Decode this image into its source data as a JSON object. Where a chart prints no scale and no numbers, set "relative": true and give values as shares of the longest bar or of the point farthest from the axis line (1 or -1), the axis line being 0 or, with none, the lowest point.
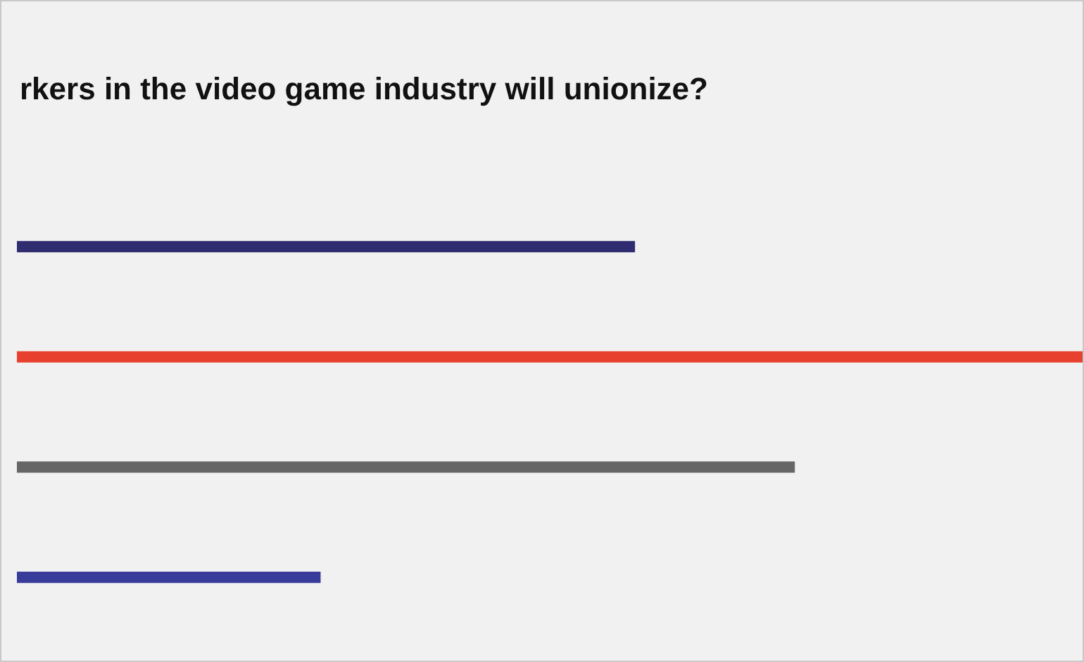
{
  "chart_data": {
    "type": "bar",
    "orientation": "horizontal",
    "relative": true,
    "title": "rkers in the video game industry will unionize?",
    "categories": [
      null,
      null,
      null,
      null
    ],
    "values": [
      0.58,
      1,
      0.73,
      0.285
    ],
    "colors": [
      "#2f2d6f",
      "#e8402e",
      "#666666",
      "#383c9a"
    ]
  }
}
